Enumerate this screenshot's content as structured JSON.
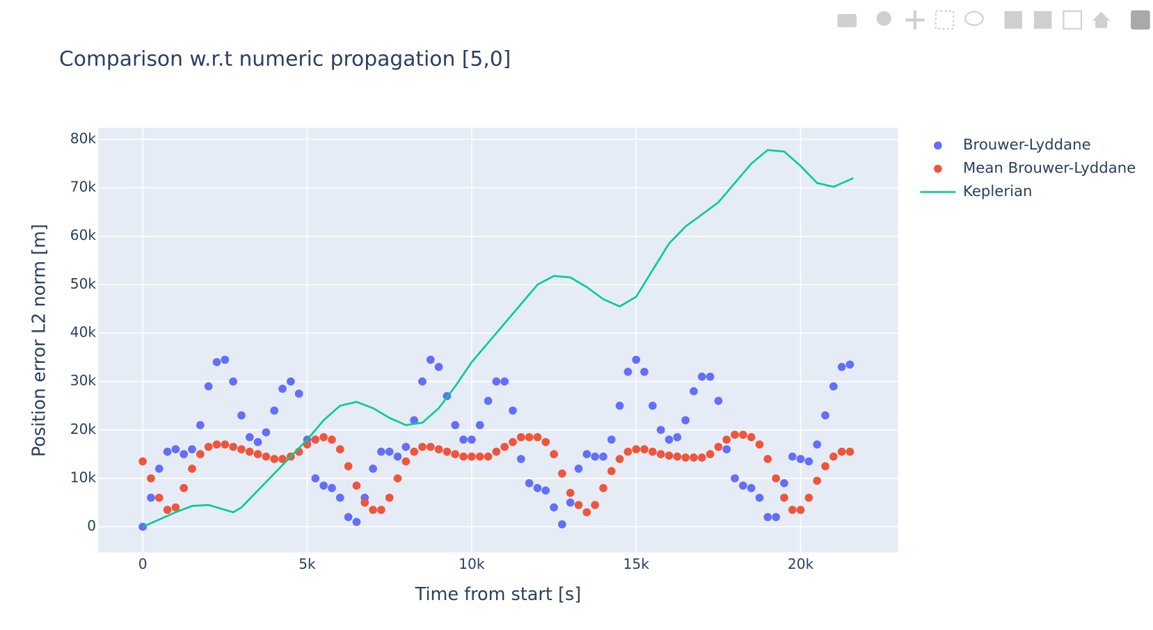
{
  "chart_data": {
    "type": "scatter",
    "title": "Comparison w.r.t numeric propagation [5,0]",
    "x_label": "Time from start [s]",
    "y_label": "Position error L2 norm [m]",
    "xlim": [
      -1350,
      22960
    ],
    "ylim": [
      -5300,
      82400
    ],
    "xticks": [
      0,
      {
        "value": 5000,
        "label": "5k"
      },
      {
        "value": 10000,
        "label": "10k"
      },
      {
        "value": 15000,
        "label": "15k"
      },
      {
        "value": 20000,
        "label": "20k"
      }
    ],
    "yticks": [
      0,
      {
        "value": 10000,
        "label": "10k"
      },
      {
        "value": 20000,
        "label": "20k"
      },
      {
        "value": 30000,
        "label": "30k"
      },
      {
        "value": 40000,
        "label": "40k"
      },
      {
        "value": 50000,
        "label": "50k"
      },
      {
        "value": 60000,
        "label": "60k"
      },
      {
        "value": 70000,
        "label": "70k"
      },
      {
        "value": 80000,
        "label": "80k"
      }
    ],
    "grid": true,
    "legend": "right",
    "series": [
      {
        "name": "Brouwer-Lyddane",
        "color": "#636efa",
        "mode": "markers",
        "x": [
          0,
          250,
          500,
          750,
          1000,
          1250,
          1500,
          1750,
          2000,
          2250,
          2500,
          2750,
          3000,
          3250,
          3500,
          3750,
          4000,
          4250,
          4500,
          4750,
          5000,
          5250,
          5500,
          5750,
          6000,
          6250,
          6500,
          6750,
          7000,
          7250,
          7500,
          7750,
          8000,
          8250,
          8500,
          8750,
          9000,
          9250,
          9500,
          9750,
          10000,
          10250,
          10500,
          10750,
          11000,
          11250,
          11500,
          11750,
          12000,
          12250,
          12500,
          12750,
          13000,
          13250,
          13500,
          13750,
          14000,
          14250,
          14500,
          14750,
          15000,
          15250,
          15500,
          15750,
          16000,
          16250,
          16500,
          16750,
          17000,
          17250,
          17500,
          17750,
          18000,
          18250,
          18500,
          18750,
          19000,
          19250,
          19500,
          19750,
          20000,
          20250,
          20500,
          20750,
          21000,
          21250,
          21500
        ],
        "values": [
          0,
          6000,
          12000,
          15500,
          16000,
          15000,
          16000,
          21000,
          29000,
          34000,
          34500,
          30000,
          23000,
          18500,
          17500,
          19500,
          24000,
          28500,
          30000,
          27500,
          18000,
          10000,
          8500,
          8000,
          6000,
          2000,
          1000,
          6000,
          12000,
          15500,
          15500,
          14500,
          16500,
          22000,
          30000,
          34500,
          33000,
          27000,
          21000,
          18000,
          18000,
          21000,
          26000,
          30000,
          30000,
          24000,
          14000,
          9000,
          8000,
          7500,
          4000,
          500,
          5000,
          12000,
          15000,
          14500,
          14500,
          18000,
          25000,
          32000,
          34500,
          32000,
          25000,
          20000,
          18000,
          18500,
          22000,
          28000,
          31000,
          31000,
          26000,
          16000,
          10000,
          8500,
          8000,
          6000,
          2000,
          2000,
          9000,
          14500,
          14000,
          13500,
          17000,
          23000,
          29000,
          33000,
          33500
        ]
      },
      {
        "name": "Mean Brouwer-Lyddane",
        "color": "#ef553b",
        "mode": "markers",
        "x": [
          0,
          250,
          500,
          750,
          1000,
          1250,
          1500,
          1750,
          2000,
          2250,
          2500,
          2750,
          3000,
          3250,
          3500,
          3750,
          4000,
          4250,
          4500,
          4750,
          5000,
          5250,
          5500,
          5750,
          6000,
          6250,
          6500,
          6750,
          7000,
          7250,
          7500,
          7750,
          8000,
          8250,
          8500,
          8750,
          9000,
          9250,
          9500,
          9750,
          10000,
          10250,
          10500,
          10750,
          11000,
          11250,
          11500,
          11750,
          12000,
          12250,
          12500,
          12750,
          13000,
          13250,
          13500,
          13750,
          14000,
          14250,
          14500,
          14750,
          15000,
          15250,
          15500,
          15750,
          16000,
          16250,
          16500,
          16750,
          17000,
          17250,
          17500,
          17750,
          18000,
          18250,
          18500,
          18750,
          19000,
          19250,
          19500,
          19750,
          20000,
          20250,
          20500,
          20750,
          21000,
          21250,
          21500
        ],
        "values": [
          13500,
          10000,
          6000,
          3500,
          4000,
          8000,
          12000,
          15000,
          16500,
          17000,
          17000,
          16500,
          16000,
          15500,
          15000,
          14500,
          14000,
          14000,
          14500,
          15500,
          17000,
          18000,
          18500,
          18000,
          16000,
          12500,
          8500,
          5000,
          3500,
          3500,
          6000,
          10000,
          13500,
          15500,
          16500,
          16500,
          16000,
          15500,
          15000,
          14500,
          14500,
          14500,
          14500,
          15500,
          16500,
          17500,
          18500,
          18500,
          18500,
          17500,
          15000,
          11000,
          7000,
          4500,
          3000,
          4500,
          8000,
          11500,
          14000,
          15500,
          16000,
          16000,
          15500,
          15000,
          14700,
          14500,
          14300,
          14300,
          14300,
          15000,
          16500,
          18000,
          19000,
          19000,
          18500,
          17000,
          14000,
          10000,
          6000,
          3500,
          3500,
          6000,
          9500,
          12500,
          14500,
          15500,
          15500
        ]
      },
      {
        "name": "Keplerian",
        "color": "#00cc96",
        "mode": "lines",
        "x": [
          0,
          500,
          1000,
          1500,
          2000,
          2500,
          2750,
          3000,
          3500,
          4000,
          4500,
          5000,
          5500,
          6000,
          6500,
          7000,
          7500,
          8000,
          8500,
          9000,
          9500,
          10000,
          10500,
          11000,
          11500,
          12000,
          12500,
          13000,
          13500,
          14000,
          14500,
          15000,
          15500,
          16000,
          16500,
          17000,
          17500,
          18000,
          18500,
          19000,
          19500,
          20000,
          20500,
          21000,
          21600
        ],
        "values": [
          0,
          1500,
          3000,
          4300,
          4500,
          3500,
          3000,
          4000,
          7500,
          11000,
          14500,
          18000,
          22000,
          25000,
          25800,
          24500,
          22500,
          21000,
          21500,
          24500,
          29000,
          34000,
          38000,
          42000,
          46000,
          50000,
          51800,
          51500,
          49500,
          47000,
          45500,
          47500,
          53000,
          58500,
          62000,
          64500,
          67000,
          71000,
          75000,
          77800,
          77500,
          74500,
          71000,
          70200,
          72000
        ]
      }
    ]
  }
}
